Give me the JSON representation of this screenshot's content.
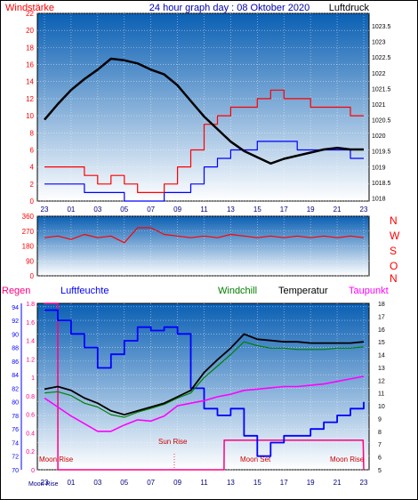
{
  "header": {
    "left_label": "Windstärke",
    "title": "24 hour graph day : 08 Oktober 2020",
    "right_label": "Luftdruck"
  },
  "colors": {
    "wind": "#ff0000",
    "gust_blue": "#0000ff",
    "pressure": "#000000",
    "humidity": "#0000ff",
    "windchill": "#008000",
    "temperature": "#000000",
    "dewpoint": "#ff00ff",
    "rain": "#ff0080",
    "panel_top": "#0a5fb3",
    "panel_bottom": "#ffffff"
  },
  "time_ticks": [
    "23",
    "01",
    "03",
    "05",
    "07",
    "09",
    "11",
    "13",
    "15",
    "17",
    "19",
    "21",
    "23"
  ],
  "chart_data": [
    {
      "type": "line",
      "name": "wind-pressure-panel",
      "left_axis": {
        "label": "Windstärke",
        "ticks": [
          0,
          2,
          4,
          6,
          8,
          10,
          12,
          14,
          16,
          18,
          20,
          22
        ],
        "ylim": [
          0,
          22
        ]
      },
      "right_axis": {
        "label": "Luftdruck",
        "ticks": [
          1018,
          1018.5,
          1019,
          1019.5,
          1020,
          1020.5,
          1021,
          1021.5,
          1022,
          1022.5,
          1023,
          1023.5
        ],
        "ylim": [
          1017.9,
          1023.9
        ]
      },
      "series": [
        {
          "name": "Luftdruck",
          "points": [
            [
              0,
              1020.5
            ],
            [
              1,
              1021.0
            ],
            [
              2,
              1021.45
            ],
            [
              3,
              1021.8
            ],
            [
              4,
              1022.1
            ],
            [
              5,
              1022.45
            ],
            [
              6,
              1022.4
            ],
            [
              7,
              1022.3
            ],
            [
              8,
              1022.1
            ],
            [
              9,
              1021.95
            ],
            [
              10,
              1021.6
            ],
            [
              11,
              1021.1
            ],
            [
              12,
              1020.6
            ],
            [
              13,
              1020.2
            ],
            [
              14,
              1019.8
            ],
            [
              15,
              1019.5
            ],
            [
              16,
              1019.3
            ],
            [
              17,
              1019.1
            ],
            [
              18,
              1019.25
            ],
            [
              19,
              1019.35
            ],
            [
              20,
              1019.45
            ],
            [
              21,
              1019.55
            ],
            [
              22,
              1019.6
            ],
            [
              23,
              1019.55
            ],
            [
              24,
              1019.55
            ]
          ]
        },
        {
          "name": "Windstärke",
          "points": [
            [
              0,
              4
            ],
            [
              1,
              4
            ],
            [
              2,
              4
            ],
            [
              3,
              3
            ],
            [
              4,
              2
            ],
            [
              5,
              3
            ],
            [
              6,
              2
            ],
            [
              7,
              1
            ],
            [
              8,
              1
            ],
            [
              9,
              2
            ],
            [
              10,
              4
            ],
            [
              11,
              6
            ],
            [
              12,
              9
            ],
            [
              13,
              10
            ],
            [
              14,
              11
            ],
            [
              15,
              11
            ],
            [
              16,
              12
            ],
            [
              17,
              13
            ],
            [
              18,
              12
            ],
            [
              19,
              12
            ],
            [
              20,
              11
            ],
            [
              21,
              11
            ],
            [
              22,
              11
            ],
            [
              23,
              10
            ],
            [
              24,
              10
            ]
          ]
        },
        {
          "points": [
            [
              0,
              2
            ],
            [
              1,
              2
            ],
            [
              2,
              2
            ],
            [
              3,
              1
            ],
            [
              4,
              1
            ],
            [
              5,
              1
            ],
            [
              6,
              0
            ],
            [
              7,
              0
            ],
            [
              8,
              0
            ],
            [
              9,
              1
            ],
            [
              10,
              1
            ],
            [
              11,
              2
            ],
            [
              12,
              4
            ],
            [
              13,
              5
            ],
            [
              14,
              6
            ],
            [
              15,
              6
            ],
            [
              16,
              7
            ],
            [
              17,
              7
            ],
            [
              18,
              7
            ],
            [
              19,
              6
            ],
            [
              20,
              6
            ],
            [
              21,
              6
            ],
            [
              22,
              6
            ],
            [
              23,
              5
            ],
            [
              24,
              5
            ]
          ]
        }
      ]
    },
    {
      "type": "scatter",
      "name": "wind-direction-panel",
      "left_axis": {
        "ticks": [
          0,
          90,
          180,
          270,
          360
        ],
        "ylim": [
          0,
          360
        ]
      },
      "right_labels": [
        "N",
        "W",
        "S",
        "O",
        "N"
      ],
      "series": [
        {
          "name": "Windrichtung",
          "points": [
            [
              0,
              230
            ],
            [
              1,
              240
            ],
            [
              2,
              220
            ],
            [
              3,
              250
            ],
            [
              4,
              230
            ],
            [
              5,
              240
            ],
            [
              6,
              200
            ],
            [
              7,
              290
            ],
            [
              8,
              290
            ],
            [
              9,
              250
            ],
            [
              10,
              240
            ],
            [
              11,
              230
            ],
            [
              12,
              240
            ],
            [
              13,
              230
            ],
            [
              14,
              250
            ],
            [
              15,
              240
            ],
            [
              16,
              230
            ],
            [
              17,
              240
            ],
            [
              18,
              230
            ],
            [
              19,
              240
            ],
            [
              20,
              230
            ],
            [
              21,
              240
            ],
            [
              22,
              230
            ],
            [
              23,
              240
            ],
            [
              24,
              230
            ]
          ]
        }
      ]
    },
    {
      "type": "line",
      "name": "temperature-humidity-rain-panel",
      "labels": {
        "rain": "Regen",
        "humidity": "Luftfeuchte",
        "windchill": "Windchill",
        "temperature": "Temperatur",
        "dewpoint": "Taupunkt"
      },
      "rain_axis": {
        "ticks": [
          0,
          0.2,
          0.4,
          0.6,
          0.8,
          1,
          1.2,
          1.4,
          1.6,
          1.8
        ],
        "ylim": [
          0,
          1.8
        ]
      },
      "humidity_axis": {
        "ticks": [
          70,
          72,
          74,
          76,
          78,
          80,
          82,
          84,
          86,
          88,
          90,
          92,
          94
        ],
        "ylim": [
          70,
          94.5
        ]
      },
      "temperature_axis": {
        "ticks": [
          5,
          6,
          7,
          8,
          9,
          10,
          11,
          12,
          13,
          14,
          15,
          16,
          17,
          18
        ],
        "ylim": [
          5,
          18
        ]
      },
      "series": [
        {
          "name": "Luftfeuchte",
          "points": [
            [
              0,
              93.5
            ],
            [
              1,
              92
            ],
            [
              2,
              90
            ],
            [
              3,
              88
            ],
            [
              4,
              85
            ],
            [
              5,
              87
            ],
            [
              6,
              89
            ],
            [
              7,
              91
            ],
            [
              8,
              90.5
            ],
            [
              9,
              91
            ],
            [
              10,
              90
            ],
            [
              11,
              82
            ],
            [
              12,
              79
            ],
            [
              13,
              78
            ],
            [
              14,
              79
            ],
            [
              15,
              75
            ],
            [
              16,
              72
            ],
            [
              17,
              74
            ],
            [
              18,
              75
            ],
            [
              19,
              75
            ],
            [
              20,
              76
            ],
            [
              21,
              77
            ],
            [
              22,
              78
            ],
            [
              23,
              79
            ],
            [
              24,
              80
            ]
          ]
        },
        {
          "name": "Temperatur",
          "points": [
            [
              0,
              11.3
            ],
            [
              1,
              11.5
            ],
            [
              2,
              11.2
            ],
            [
              3,
              10.6
            ],
            [
              4,
              10.2
            ],
            [
              5,
              9.6
            ],
            [
              6,
              9.3
            ],
            [
              7,
              9.6
            ],
            [
              8,
              9.9
            ],
            [
              9,
              10.2
            ],
            [
              10,
              10.7
            ],
            [
              11,
              11.2
            ],
            [
              12,
              12.6
            ],
            [
              13,
              13.6
            ],
            [
              14,
              14.5
            ],
            [
              15,
              15.6
            ],
            [
              16,
              15.2
            ],
            [
              17,
              15.1
            ],
            [
              18,
              15.0
            ],
            [
              19,
              15.0
            ],
            [
              20,
              14.9
            ],
            [
              21,
              14.9
            ],
            [
              22,
              14.9
            ],
            [
              23,
              14.9
            ],
            [
              24,
              15.0
            ]
          ]
        },
        {
          "name": "Windchill",
          "points": [
            [
              0,
              11.0
            ],
            [
              1,
              11.1
            ],
            [
              2,
              10.8
            ],
            [
              3,
              10.2
            ],
            [
              4,
              9.9
            ],
            [
              5,
              9.3
            ],
            [
              6,
              9.1
            ],
            [
              7,
              9.5
            ],
            [
              8,
              9.8
            ],
            [
              9,
              10.1
            ],
            [
              10,
              10.6
            ],
            [
              11,
              11.0
            ],
            [
              12,
              12.2
            ],
            [
              13,
              13.1
            ],
            [
              14,
              14.0
            ],
            [
              15,
              15.0
            ],
            [
              16,
              14.7
            ],
            [
              17,
              14.5
            ],
            [
              18,
              14.5
            ],
            [
              19,
              14.4
            ],
            [
              20,
              14.4
            ],
            [
              21,
              14.4
            ],
            [
              22,
              14.5
            ],
            [
              23,
              14.5
            ],
            [
              24,
              14.6
            ]
          ]
        },
        {
          "name": "Taupunkt",
          "points": [
            [
              0,
              10.6
            ],
            [
              1,
              9.9
            ],
            [
              2,
              9.2
            ],
            [
              3,
              8.6
            ],
            [
              4,
              8.0
            ],
            [
              5,
              8.0
            ],
            [
              6,
              8.5
            ],
            [
              7,
              8.9
            ],
            [
              8,
              8.8
            ],
            [
              9,
              9.2
            ],
            [
              10,
              10.0
            ],
            [
              11,
              10.2
            ],
            [
              12,
              10.4
            ],
            [
              13,
              10.7
            ],
            [
              14,
              10.9
            ],
            [
              15,
              11.2
            ],
            [
              16,
              11.3
            ],
            [
              17,
              11.4
            ],
            [
              18,
              11.5
            ],
            [
              19,
              11.5
            ],
            [
              20,
              11.6
            ],
            [
              21,
              11.7
            ],
            [
              22,
              11.9
            ],
            [
              23,
              12.1
            ],
            [
              24,
              12.3
            ]
          ]
        },
        {
          "name": "Regen",
          "points": [
            [
              0,
              1.8
            ],
            [
              1,
              1.8
            ],
            [
              1.01,
              0
            ],
            [
              13.5,
              0
            ],
            [
              13.51,
              0.32
            ],
            [
              23.95,
              0.32
            ],
            [
              24,
              0
            ]
          ]
        }
      ],
      "annotations": [
        "Moon Rise",
        "Sun Rise",
        "Moon Set",
        "Moon Rise"
      ]
    }
  ],
  "bottom_labels": {
    "moon": "Moon Rise",
    "sun": "Sun Rise"
  }
}
